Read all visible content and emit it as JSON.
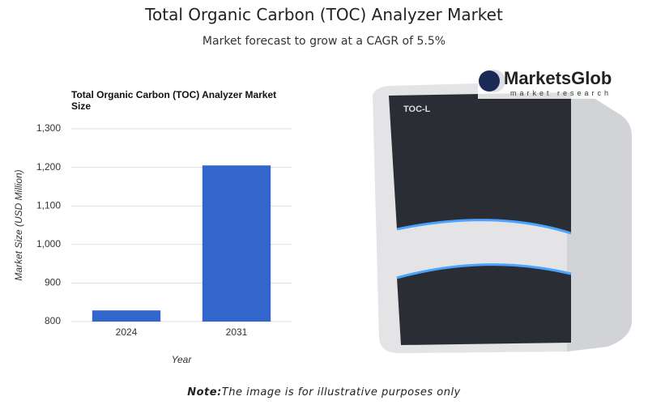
{
  "title": "Total Organic Carbon (TOC) Analyzer Market",
  "subtitle": "Market forecast to grow at a CAGR of 5.5%",
  "chart_data": {
    "type": "bar",
    "title": "Total Organic Carbon (TOC) Analyzer Market Size",
    "x_label": "Year",
    "y_label": "Market Size (USD Million)",
    "categories": [
      "2024",
      "2031"
    ],
    "values": [
      829,
      1205
    ],
    "color": "#3366cc",
    "ylim": [
      800,
      1300
    ],
    "yticks": [
      800,
      900,
      {
        "value": 1000,
        "label": "1,000"
      },
      {
        "value": 1100,
        "label": "1,100"
      },
      {
        "value": 1200,
        "label": "1,200"
      },
      {
        "value": 1300,
        "label": "1,300"
      }
    ],
    "grid": true
  },
  "logo": {
    "name": "MarketsGlob",
    "tagline": "market research"
  },
  "device_label": "TOC-L",
  "note": {
    "label": "Note:",
    "text": "The image is for illustrative purposes only"
  }
}
